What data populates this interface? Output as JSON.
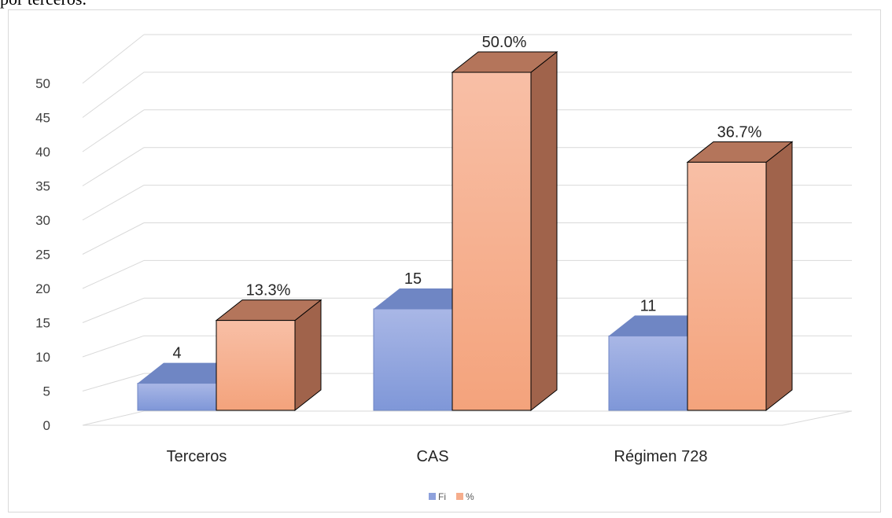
{
  "header": {
    "text": "por terceros."
  },
  "chart_data": {
    "type": "bar",
    "categories": [
      "Terceros",
      "CAS",
      "Régimen 728"
    ],
    "series": [
      {
        "name": "Fi",
        "values": [
          4,
          15,
          11
        ],
        "labels": [
          "4",
          "15",
          "11"
        ],
        "color": "#8ea1dc"
      },
      {
        "name": "%",
        "values": [
          13.3,
          50.0,
          36.7
        ],
        "labels": [
          "13.3%",
          "50.0%",
          "36.7%"
        ],
        "color": "#f6ad8c"
      }
    ],
    "y_ticks": [
      0,
      5,
      10,
      15,
      20,
      25,
      30,
      35,
      40,
      45,
      50
    ],
    "ylim": [
      0,
      50
    ],
    "grid": true,
    "legend_position": "bottom",
    "style": "3d-column"
  }
}
